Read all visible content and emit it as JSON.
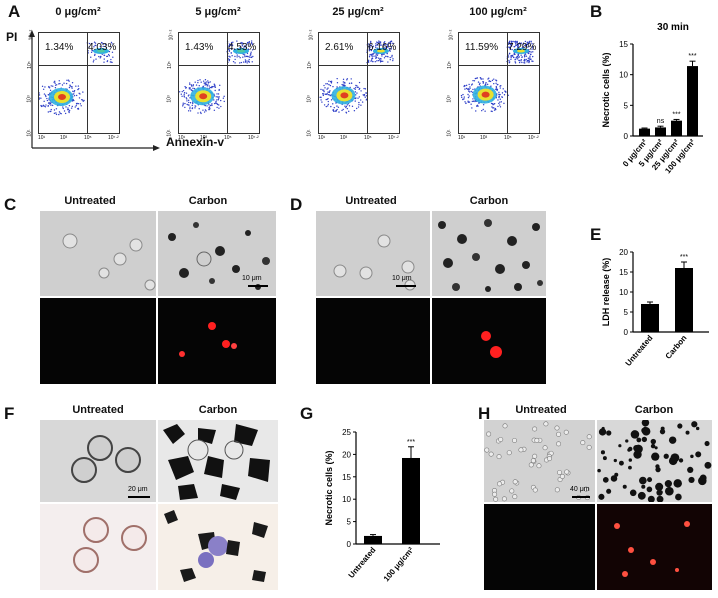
{
  "panels": {
    "A": "A",
    "B": "B",
    "C": "C",
    "D": "D",
    "E": "E",
    "F": "F",
    "G": "G",
    "H": "H"
  },
  "flow": {
    "y_label": "PI",
    "x_label": "Annexin-v",
    "plots": [
      {
        "title": "0 μg/cm²",
        "ul": "1.34%",
        "ur": "4.03%"
      },
      {
        "title": "5 μg/cm²",
        "ul": "1.43%",
        "ur": "4.53%"
      },
      {
        "title": "25 μg/cm²",
        "ul": "2.61%",
        "ur": "6.16%"
      },
      {
        "title": "100 μg/cm²",
        "ul": "11.59%",
        "ur": "7.29%"
      }
    ]
  },
  "micro_labels": {
    "C": {
      "left": "Untreated",
      "right": "Carbon",
      "scale": "10 μm"
    },
    "D": {
      "left": "Untreated",
      "right": "Carbon",
      "scale": "10 μm"
    },
    "F": {
      "left": "Untreated",
      "right": "Carbon",
      "scale": "20 μm"
    },
    "H": {
      "left": "Untreated",
      "right": "Carbon",
      "scale": "40 μm"
    }
  },
  "chart_data": [
    {
      "panel": "B",
      "type": "bar",
      "title": "30 min",
      "ylabel": "Necrotic cells (%)",
      "categories": [
        "0 μg/cm²",
        "5 μg/cm²",
        "25 μg/cm²",
        "100 μg/cm²"
      ],
      "values": [
        1.2,
        1.4,
        2.5,
        11.4
      ],
      "errors": [
        0.1,
        0.2,
        0.2,
        0.8
      ],
      "annotations": [
        "",
        "ns",
        "***",
        "***"
      ],
      "ylim": [
        0,
        15
      ],
      "yticks": [
        0,
        5,
        10,
        15
      ]
    },
    {
      "panel": "E",
      "type": "bar",
      "ylabel": "LDH release (%)",
      "categories": [
        "Untreated",
        "Carbon"
      ],
      "values": [
        7.0,
        16.0
      ],
      "errors": [
        0.5,
        1.5
      ],
      "annotations": [
        "",
        "***"
      ],
      "ylim": [
        0,
        20
      ],
      "yticks": [
        0,
        5,
        10,
        15,
        20
      ]
    },
    {
      "panel": "G",
      "type": "bar",
      "ylabel": "Necrotic cells (%)",
      "categories": [
        "Untreated",
        "100 μg/cm²"
      ],
      "values": [
        1.8,
        19.2
      ],
      "errors": [
        0.3,
        2.5
      ],
      "annotations": [
        "",
        "***"
      ],
      "ylim": [
        0,
        25
      ],
      "yticks": [
        0,
        5,
        10,
        15,
        20,
        25
      ]
    }
  ]
}
